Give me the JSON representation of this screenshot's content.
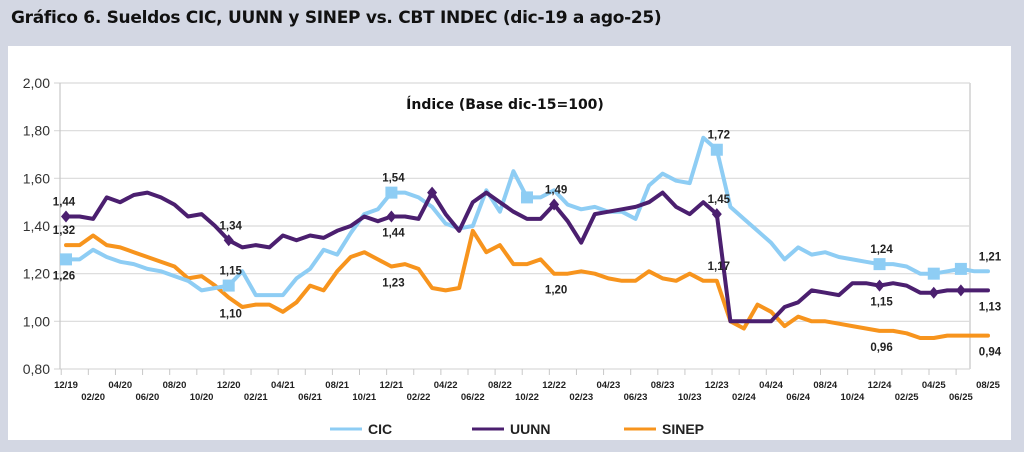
{
  "header": {
    "title": "Gráfico 6. Sueldos CIC, UUNN y SINEP vs. CBT INDEC (dic-19 a ago-25)"
  },
  "chart_data": {
    "type": "line",
    "title": "Gráfico 6. Sueldos CIC, UUNN y SINEP vs. CBT INDEC (dic-19 a ago-25)",
    "subtitle": "Índice (Base dic-15=100)",
    "xlabel": "",
    "ylabel": "",
    "ylim": [
      0.8,
      2.0
    ],
    "yticks": [
      "0,80",
      "1,00",
      "1,20",
      "1,40",
      "1,60",
      "1,80",
      "2,00"
    ],
    "ytick_values": [
      0.8,
      1.0,
      1.2,
      1.4,
      1.6,
      1.8,
      2.0
    ],
    "grid": true,
    "legend_position": "bottom",
    "x": [
      "12/19",
      "01/20",
      "02/20",
      "03/20",
      "04/20",
      "05/20",
      "06/20",
      "07/20",
      "08/20",
      "09/20",
      "10/20",
      "11/20",
      "12/20",
      "01/21",
      "02/21",
      "03/21",
      "04/21",
      "05/21",
      "06/21",
      "07/21",
      "08/21",
      "09/21",
      "10/21",
      "11/21",
      "12/21",
      "01/22",
      "02/22",
      "03/22",
      "04/22",
      "05/22",
      "06/22",
      "07/22",
      "08/22",
      "09/22",
      "10/22",
      "11/22",
      "12/22",
      "01/23",
      "02/23",
      "03/23",
      "04/23",
      "05/23",
      "06/23",
      "07/23",
      "08/23",
      "09/23",
      "10/23",
      "11/23",
      "12/23",
      "01/24",
      "02/24",
      "03/24",
      "04/24",
      "05/24",
      "06/24",
      "07/24",
      "08/24",
      "09/24",
      "10/24",
      "11/24",
      "12/24",
      "01/25",
      "02/25",
      "03/25",
      "04/25",
      "05/25",
      "06/25",
      "07/25",
      "08/25"
    ],
    "xtick_labels_upper": [
      "12/19",
      "04/20",
      "08/20",
      "12/20",
      "04/21",
      "08/21",
      "12/21",
      "04/22",
      "08/22",
      "12/22",
      "04/23",
      "08/23",
      "12/23",
      "04/24",
      "08/24",
      "12/24",
      "04/25",
      "08/25"
    ],
    "xtick_labels_lower": [
      "02/20",
      "06/20",
      "10/20",
      "02/21",
      "06/21",
      "10/21",
      "02/22",
      "06/22",
      "10/22",
      "02/23",
      "06/23",
      "10/23",
      "02/24",
      "06/24",
      "10/24",
      "02/25",
      "06/25"
    ],
    "series": [
      {
        "name": "CIC",
        "color": "#8ecdf4",
        "marker": "square",
        "values": [
          1.26,
          1.26,
          1.3,
          1.27,
          1.25,
          1.24,
          1.22,
          1.21,
          1.19,
          1.17,
          1.13,
          1.14,
          1.15,
          1.21,
          1.11,
          1.11,
          1.11,
          1.18,
          1.22,
          1.3,
          1.28,
          1.37,
          1.45,
          1.47,
          1.54,
          1.54,
          1.52,
          1.48,
          1.41,
          1.39,
          1.4,
          1.55,
          1.46,
          1.63,
          1.52,
          1.52,
          1.55,
          1.49,
          1.47,
          1.48,
          1.46,
          1.46,
          1.43,
          1.57,
          1.62,
          1.59,
          1.58,
          1.77,
          1.72,
          1.48,
          1.43,
          1.38,
          1.33,
          1.26,
          1.31,
          1.28,
          1.29,
          1.27,
          1.26,
          1.25,
          1.24,
          1.24,
          1.23,
          1.2,
          1.2,
          1.21,
          1.22,
          1.21,
          1.21
        ],
        "labels": [
          {
            "index": 0,
            "text": "1,26",
            "pos": "below"
          },
          {
            "index": 12,
            "text": "1,15",
            "pos": "above"
          },
          {
            "index": 24,
            "text": "1,54",
            "pos": "above"
          },
          {
            "index": 48,
            "text": "1,72",
            "pos": "above"
          },
          {
            "index": 60,
            "text": "1,24",
            "pos": "above"
          },
          {
            "index": 68,
            "text": "1,21",
            "pos": "above"
          }
        ],
        "marker_indices": [
          0,
          12,
          24,
          34,
          48,
          60,
          64,
          66
        ]
      },
      {
        "name": "UUNN",
        "color": "#4b1f6f",
        "marker": "diamond",
        "values": [
          1.44,
          1.44,
          1.43,
          1.52,
          1.5,
          1.53,
          1.54,
          1.52,
          1.49,
          1.44,
          1.45,
          1.4,
          1.34,
          1.31,
          1.32,
          1.31,
          1.36,
          1.34,
          1.36,
          1.35,
          1.38,
          1.4,
          1.44,
          1.42,
          1.44,
          1.44,
          1.43,
          1.54,
          1.45,
          1.38,
          1.5,
          1.54,
          1.5,
          1.46,
          1.43,
          1.43,
          1.49,
          1.42,
          1.33,
          1.45,
          1.46,
          1.47,
          1.48,
          1.5,
          1.54,
          1.48,
          1.45,
          1.5,
          1.45,
          1.0,
          1.0,
          1.0,
          1.0,
          1.06,
          1.08,
          1.13,
          1.12,
          1.11,
          1.16,
          1.16,
          1.15,
          1.16,
          1.15,
          1.12,
          1.12,
          1.13,
          1.13,
          1.13,
          1.13
        ],
        "labels": [
          {
            "index": 0,
            "text": "1,44",
            "pos": "above"
          },
          {
            "index": 12,
            "text": "1,34",
            "pos": "above"
          },
          {
            "index": 24,
            "text": "1,44",
            "pos": "below"
          },
          {
            "index": 36,
            "text": "1,49",
            "pos": "above"
          },
          {
            "index": 48,
            "text": "1,45",
            "pos": "above"
          },
          {
            "index": 60,
            "text": "1,15",
            "pos": "below"
          },
          {
            "index": 68,
            "text": "1,13",
            "pos": "below"
          }
        ],
        "marker_indices": [
          0,
          12,
          24,
          27,
          36,
          48,
          60,
          64,
          66
        ]
      },
      {
        "name": "SINEP",
        "color": "#f7941d",
        "marker": "none",
        "values": [
          1.32,
          1.32,
          1.36,
          1.32,
          1.31,
          1.29,
          1.27,
          1.25,
          1.23,
          1.18,
          1.19,
          1.15,
          1.1,
          1.06,
          1.07,
          1.07,
          1.04,
          1.08,
          1.15,
          1.13,
          1.21,
          1.27,
          1.29,
          1.26,
          1.23,
          1.24,
          1.22,
          1.14,
          1.13,
          1.14,
          1.38,
          1.29,
          1.32,
          1.24,
          1.24,
          1.26,
          1.2,
          1.2,
          1.21,
          1.2,
          1.18,
          1.17,
          1.17,
          1.21,
          1.18,
          1.17,
          1.2,
          1.17,
          1.17,
          1.0,
          0.97,
          1.07,
          1.04,
          0.98,
          1.02,
          1.0,
          1.0,
          0.99,
          0.98,
          0.97,
          0.96,
          0.96,
          0.95,
          0.93,
          0.93,
          0.94,
          0.94,
          0.94,
          0.94
        ],
        "labels": [
          {
            "index": 0,
            "text": "1,32",
            "pos": "above"
          },
          {
            "index": 12,
            "text": "1,10",
            "pos": "below"
          },
          {
            "index": 24,
            "text": "1,23",
            "pos": "below"
          },
          {
            "index": 36,
            "text": "1,20",
            "pos": "below"
          },
          {
            "index": 48,
            "text": "1,17",
            "pos": "above"
          },
          {
            "index": 60,
            "text": "0,96",
            "pos": "below"
          },
          {
            "index": 68,
            "text": "0,94",
            "pos": "below"
          }
        ],
        "marker_indices": []
      }
    ]
  }
}
